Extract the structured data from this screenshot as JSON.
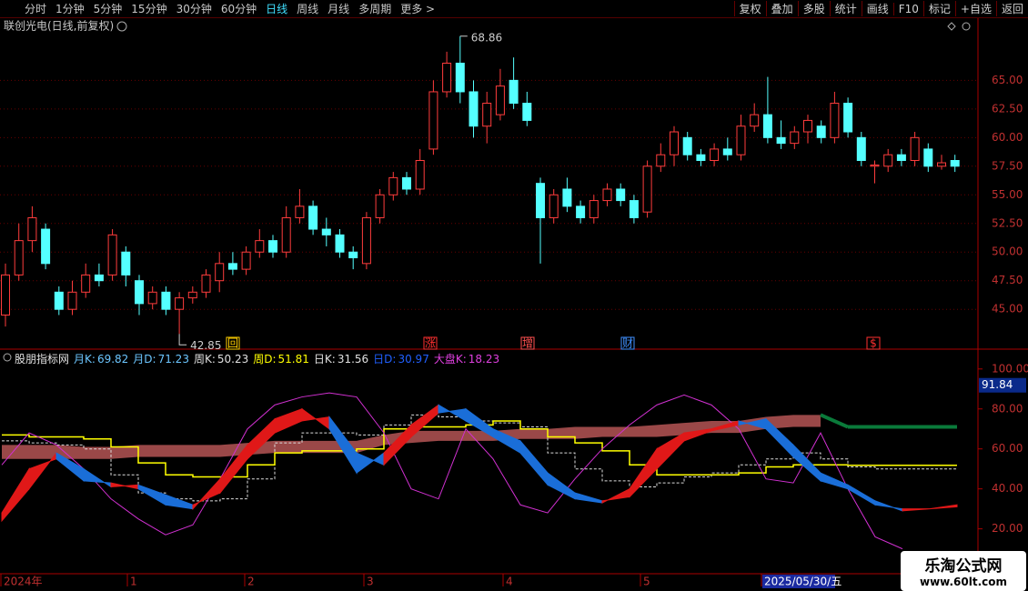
{
  "toolbar": {
    "left": [
      "分时",
      "1分钟",
      "5分钟",
      "15分钟",
      "30分钟",
      "60分钟",
      "日线",
      "周线",
      "月线",
      "多周期",
      "更多 >"
    ],
    "right": [
      "复权",
      "叠加",
      "多股",
      "统计",
      "画线",
      "F10",
      "标记",
      "+自选",
      "返回"
    ]
  },
  "price_chart": {
    "title": "联创光电(日线,前复权)",
    "ylim": [
      41.6,
      69
    ],
    "yticks": [
      {
        "value": 65,
        "label": "65.00"
      },
      {
        "value": 62.5,
        "label": "62.50"
      },
      {
        "value": 60,
        "label": "60.00"
      },
      {
        "value": 57.5,
        "label": "57.50"
      },
      {
        "value": 55,
        "label": "55.00"
      },
      {
        "value": 52.5,
        "label": "52.50"
      },
      {
        "value": 50,
        "label": "50.00"
      },
      {
        "value": 47.5,
        "label": "47.50"
      },
      {
        "value": 45,
        "label": "45.00"
      }
    ],
    "candles": [
      [
        44.5,
        48,
        49,
        43.5
      ],
      [
        48,
        51,
        52.5,
        47.5
      ],
      [
        51,
        53,
        54,
        50
      ],
      [
        52,
        49,
        52.5,
        48.5
      ],
      [
        46.5,
        45,
        47,
        44.5
      ],
      [
        45,
        46.5,
        47.5,
        44.5
      ],
      [
        46.5,
        48,
        49,
        46
      ],
      [
        48,
        47.5,
        49,
        47
      ],
      [
        48,
        51.5,
        52,
        47.5
      ],
      [
        50,
        48,
        50.5,
        47
      ],
      [
        47.5,
        45.5,
        48,
        44.5
      ],
      [
        45.5,
        46.5,
        47,
        45
      ],
      [
        46.5,
        45,
        47,
        44.5
      ],
      [
        45,
        46,
        46.5,
        42.85
      ],
      [
        46,
        46.5,
        47,
        45.5
      ],
      [
        46.5,
        48,
        48.5,
        46
      ],
      [
        47.5,
        49,
        50,
        46.5
      ],
      [
        49,
        48.5,
        50,
        48
      ],
      [
        48.5,
        50,
        50.5,
        48
      ],
      [
        50,
        51,
        52,
        49.5
      ],
      [
        51,
        50,
        51.5,
        49.5
      ],
      [
        50,
        53,
        54,
        49.5
      ],
      [
        53,
        54,
        55.5,
        52.5
      ],
      [
        54,
        52,
        54.5,
        51.5
      ],
      [
        52,
        51.5,
        53,
        50.5
      ],
      [
        51.5,
        50,
        52,
        49.5
      ],
      [
        50,
        49.5,
        50.5,
        48.5
      ],
      [
        49,
        53,
        53.5,
        48.5
      ],
      [
        53,
        55,
        55.5,
        52.5
      ],
      [
        55,
        56.5,
        57,
        54.5
      ],
      [
        56.5,
        55.5,
        57,
        55
      ],
      [
        55.5,
        58,
        59,
        55
      ],
      [
        59,
        64,
        65,
        58.5
      ],
      [
        64,
        66.5,
        67.5,
        63.5
      ],
      [
        66.5,
        64,
        68.86,
        63
      ],
      [
        64,
        61,
        65,
        60
      ],
      [
        61,
        63,
        64,
        59.5
      ],
      [
        62,
        64.5,
        66,
        61.5
      ],
      [
        65,
        63,
        67,
        62.5
      ],
      [
        63,
        61.5,
        64,
        61
      ],
      [
        56,
        53,
        56.5,
        49
      ],
      [
        53,
        55,
        55.5,
        52.5
      ],
      [
        55.5,
        54,
        56.5,
        53.5
      ],
      [
        54,
        53,
        54.5,
        52.5
      ],
      [
        53,
        54.5,
        55,
        52.5
      ],
      [
        54.5,
        55.5,
        56,
        54
      ],
      [
        55.5,
        54.5,
        56,
        54
      ],
      [
        54.5,
        53,
        55,
        52.5
      ],
      [
        53.5,
        57.5,
        58,
        53
      ],
      [
        57.5,
        58.5,
        59.5,
        57
      ],
      [
        58.5,
        60.5,
        61,
        57.5
      ],
      [
        60,
        58.5,
        60.5,
        58
      ],
      [
        58.5,
        58,
        59,
        57.5
      ],
      [
        58,
        59,
        59.5,
        57.5
      ],
      [
        59,
        58.5,
        60,
        58
      ],
      [
        58.5,
        61,
        62,
        58
      ],
      [
        61,
        62,
        63,
        60.5
      ],
      [
        62,
        60,
        65.3,
        59.5
      ],
      [
        60,
        59.5,
        61.5,
        59
      ],
      [
        59.5,
        60.5,
        61,
        59
      ],
      [
        60.5,
        61.5,
        62,
        59.5
      ],
      [
        61,
        60,
        61.5,
        59.5
      ],
      [
        60,
        63,
        64,
        59.5
      ],
      [
        63,
        60.5,
        63.5,
        60
      ],
      [
        60,
        58,
        60.5,
        57.5
      ],
      [
        57.5,
        57.6,
        58,
        56
      ],
      [
        57.5,
        58.5,
        59,
        57
      ],
      [
        58.5,
        58,
        59,
        57.5
      ],
      [
        58,
        60,
        60.5,
        57.5
      ],
      [
        59,
        57.5,
        59.5,
        57
      ],
      [
        57.5,
        57.8,
        58.5,
        57.2
      ],
      [
        58,
        57.5,
        58.5,
        57
      ]
    ],
    "markers": [
      {
        "label": "回",
        "color": "#ffd000"
      },
      {
        "label": "涨",
        "color": "#ff3030"
      },
      {
        "label": "增",
        "color": "#ff5050"
      },
      {
        "label": "财",
        "color": "#4090ff"
      },
      {
        "label": "$",
        "color": "#ff3030"
      }
    ]
  },
  "indicator": {
    "title": "股朋指标网",
    "ylim": [
      -2,
      104
    ],
    "yticks": [
      {
        "value": 100,
        "label": "100.00"
      },
      {
        "value": 80,
        "label": "80.00"
      },
      {
        "value": 60,
        "label": "60.00"
      },
      {
        "value": 40,
        "label": "40.00"
      },
      {
        "value": 20,
        "label": "20.00"
      }
    ],
    "current": 91.84,
    "legend": [
      {
        "label": "月K:",
        "value": 69.82,
        "color": "#6cc6ff"
      },
      {
        "label": "月D:",
        "value": 71.23,
        "color": "#6cc6ff"
      },
      {
        "label": "周K:",
        "value": 50.23,
        "color": "#e0e0e0"
      },
      {
        "label": "周D:",
        "value": 51.81,
        "color": "#ffff00"
      },
      {
        "label": "日K:",
        "value": 31.56,
        "color": "#e0e0e0"
      },
      {
        "label": "日D:",
        "value": 30.97,
        "color": "#2060ff"
      },
      {
        "label": "大盘K:",
        "value": 18.23,
        "color": "#e040e0"
      }
    ],
    "month_k": [
      55,
      55,
      55,
      55,
      55,
      56,
      56,
      56,
      56,
      57,
      58,
      58,
      58,
      58,
      62,
      63,
      64,
      64,
      64,
      65,
      65,
      65,
      66,
      66,
      66,
      67,
      68,
      68,
      70,
      71,
      71,
      null,
      null,
      null,
      null,
      null
    ],
    "month_d": [
      62,
      62,
      62,
      61,
      61,
      62,
      62,
      62,
      62,
      63,
      64,
      64,
      64,
      64,
      67,
      69,
      69,
      69,
      69,
      70,
      70,
      71,
      71,
      71,
      72,
      73,
      74,
      74,
      76,
      77,
      77,
      71,
      71,
      71,
      71,
      71
    ],
    "week_k": [
      64,
      63,
      62,
      60,
      47,
      38,
      35,
      34,
      35,
      45,
      63,
      68,
      68,
      67,
      72,
      77,
      76,
      74,
      73,
      71,
      58,
      50,
      44,
      41,
      43,
      46,
      48,
      52,
      55,
      58,
      55,
      51,
      50,
      50,
      50,
      50
    ],
    "week_d": [
      67,
      66,
      66,
      65,
      61,
      53,
      47,
      46,
      46,
      52,
      58,
      59,
      59,
      60,
      70,
      71,
      71,
      72,
      74,
      70,
      66,
      63,
      59,
      52,
      47,
      47,
      47,
      48,
      51,
      52,
      52,
      51.8,
      51.8,
      51.8,
      51.8,
      51.8
    ],
    "day_k": [
      28,
      50,
      55,
      44,
      43,
      40,
      32,
      30,
      45,
      62,
      75,
      80,
      70,
      48,
      58,
      72,
      82,
      74,
      66,
      58,
      42,
      35,
      33,
      40,
      60,
      68,
      70,
      74,
      70,
      56,
      44,
      40,
      32,
      30,
      30,
      32
    ],
    "day_d": [
      24,
      40,
      58,
      50,
      41,
      42,
      37,
      32,
      38,
      55,
      68,
      74,
      76,
      58,
      52,
      66,
      78,
      80,
      70,
      64,
      48,
      38,
      34,
      36,
      50,
      64,
      69,
      72,
      75,
      62,
      48,
      42,
      34,
      29,
      30,
      31
    ],
    "market_k": [
      52,
      68,
      62,
      50,
      35,
      25,
      17,
      22,
      45,
      70,
      82,
      86,
      88,
      86,
      68,
      40,
      35,
      70,
      55,
      32,
      28,
      45,
      60,
      72,
      82,
      87,
      82,
      70,
      45,
      43,
      68,
      40,
      16,
      10,
      null,
      18
    ]
  },
  "date_axis": [
    "2024年",
    "1",
    "2",
    "3",
    "4",
    "5",
    "2025/05/30/五"
  ],
  "watermark": {
    "name": "乐淘公式网",
    "url": "www.60lt.com"
  }
}
